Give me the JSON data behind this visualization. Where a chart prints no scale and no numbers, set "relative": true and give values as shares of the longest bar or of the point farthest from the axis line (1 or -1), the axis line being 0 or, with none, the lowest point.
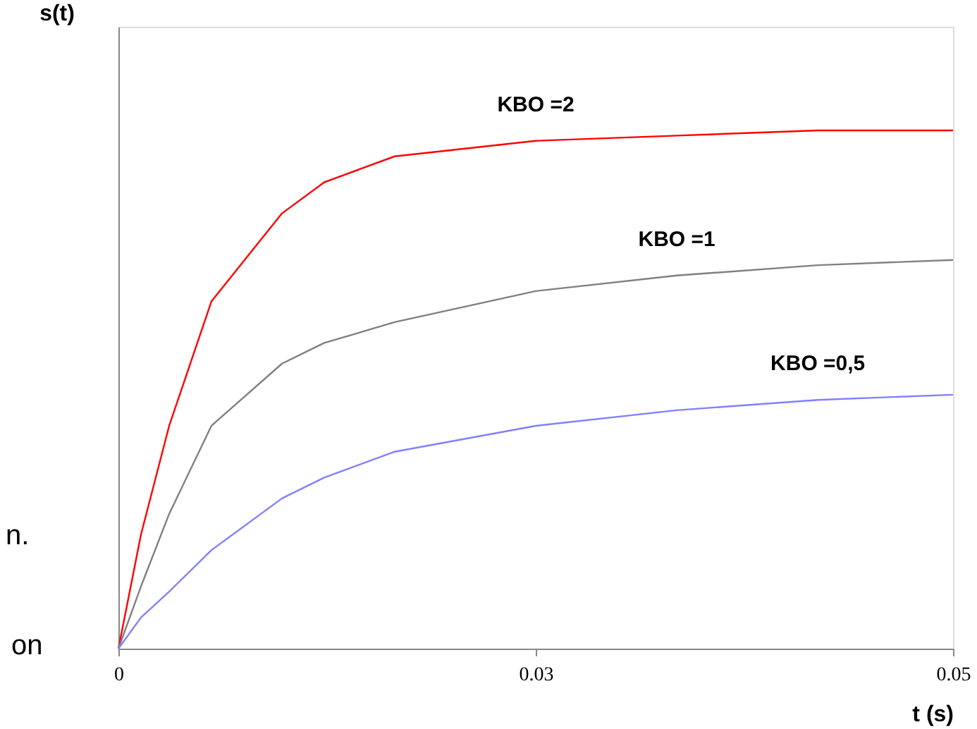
{
  "chart_data": {
    "type": "line",
    "relative": true,
    "xlabel": "t (s)",
    "ylabel": "s(t)",
    "x": [
      0,
      0.00135,
      0.00304,
      0.00557,
      0.0098,
      0.01233,
      0.01655,
      0.025,
      0.03345,
      0.0419,
      0.05
    ],
    "xlim": [
      0,
      0.05
    ],
    "xticks": [
      0,
      {
        "value": 0.025,
        "label": "0.03"
      },
      0.05
    ],
    "series": [
      {
        "name": "KBO =2",
        "color": "#ff0000",
        "values": [
          0,
          0.22,
          0.43,
          0.67,
          0.84,
          0.9,
          0.95,
          0.98,
          0.99,
          1.0,
          1.0
        ]
      },
      {
        "name": "KBO =1",
        "color": "#808080",
        "values": [
          0,
          0.12,
          0.26,
          0.43,
          0.55,
          0.59,
          0.63,
          0.69,
          0.72,
          0.74,
          0.75
        ]
      },
      {
        "name": "KBO =0,5",
        "color": "#8080ff",
        "values": [
          0,
          0.06,
          0.11,
          0.19,
          0.29,
          0.33,
          0.38,
          0.43,
          0.46,
          0.48,
          0.49
        ]
      }
    ],
    "annotations": [
      "n.",
      "on"
    ],
    "grid": false,
    "legend": false,
    "marker": "none",
    "line_style": "solid"
  }
}
